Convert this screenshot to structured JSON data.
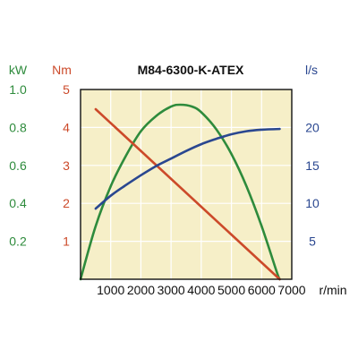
{
  "chart_data": {
    "type": "line",
    "title": "M84-6300-K-ATEX",
    "x": {
      "label": "r/min",
      "range": [
        0,
        7000
      ],
      "ticks": [
        1000,
        2000,
        3000,
        4000,
        5000,
        6000,
        7000
      ],
      "tick_labels": [
        "1000",
        "2000",
        "3000",
        "4000",
        "5000",
        "6000",
        "7000"
      ]
    },
    "axes": {
      "kw": {
        "label": "kW",
        "range": [
          0,
          1.0
        ],
        "ticks": [
          0.2,
          0.4,
          0.6,
          0.8,
          1.0
        ],
        "tick_labels": [
          "0.2",
          "0.4",
          "0.6",
          "0.8",
          "1.0"
        ],
        "color": "#2e8b3c"
      },
      "nm": {
        "label": "Nm",
        "range": [
          0,
          5
        ],
        "ticks": [
          1,
          2,
          3,
          4,
          5
        ],
        "tick_labels": [
          "1",
          "2",
          "3",
          "4",
          "5"
        ],
        "color": "#cc4a2a"
      },
      "ls": {
        "label": "l/s",
        "range": [
          0,
          25
        ],
        "ticks": [
          5,
          10,
          15,
          20
        ],
        "tick_labels": [
          "5",
          "10",
          "15",
          "20"
        ],
        "color": "#2a4790"
      }
    },
    "series": [
      {
        "axis": "kw",
        "color": "#2e8b3c",
        "points": [
          [
            0,
            0
          ],
          [
            500,
            0.28
          ],
          [
            1000,
            0.49
          ],
          [
            1500,
            0.65
          ],
          [
            2000,
            0.78
          ],
          [
            2500,
            0.86
          ],
          [
            3000,
            0.91
          ],
          [
            3300,
            0.92
          ],
          [
            3700,
            0.91
          ],
          [
            4000,
            0.88
          ],
          [
            4500,
            0.79
          ],
          [
            5000,
            0.66
          ],
          [
            5500,
            0.49
          ],
          [
            6000,
            0.28
          ],
          [
            6500,
            0.04
          ],
          [
            6600,
            0
          ]
        ]
      },
      {
        "axis": "nm",
        "color": "#cc4a2a",
        "points": [
          [
            500,
            4.48
          ],
          [
            6600,
            0
          ]
        ]
      },
      {
        "axis": "ls",
        "color": "#2a4790",
        "points": [
          [
            500,
            9.3
          ],
          [
            1000,
            11.0
          ],
          [
            1500,
            12.4
          ],
          [
            2000,
            13.7
          ],
          [
            2500,
            14.9
          ],
          [
            3000,
            15.9
          ],
          [
            3500,
            16.9
          ],
          [
            4000,
            17.8
          ],
          [
            4500,
            18.5
          ],
          [
            5000,
            19.1
          ],
          [
            5500,
            19.5
          ],
          [
            6000,
            19.7
          ],
          [
            6600,
            19.8
          ]
        ]
      }
    ],
    "grid": true,
    "background": "#f6efc8"
  }
}
